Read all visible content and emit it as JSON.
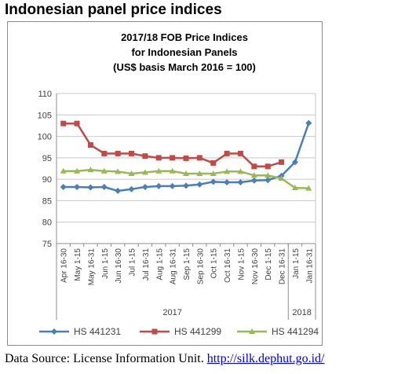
{
  "heading": "Indonesian panel price indices",
  "source": {
    "prefix": "Data Source: License Information Unit.",
    "link": "http://silk.dephut.go.id/"
  },
  "chart_data": {
    "type": "line",
    "title_lines": [
      "2017/18 FOB Price Indices",
      "for Indonesian Panels",
      "(US$ basis March 2016 = 100)"
    ],
    "ylim": [
      75,
      110
    ],
    "yticks": [
      75,
      80,
      85,
      90,
      95,
      100,
      105,
      110
    ],
    "grid": true,
    "legend_position": "bottom",
    "categories": [
      "Apr 16-30",
      "May 1-15",
      "May 16-31",
      "Jun 1-15",
      "Jun 16-30",
      "Jul 1-15",
      "Jul 16-31",
      "Aug 1-15",
      "Aug 16-31",
      "Sep 1-15",
      "Sep 16-30",
      "Oct 1-15",
      "Oct 16-31",
      "Nov 1-15",
      "Nov 16-30",
      "Dec 1-15",
      "Dec 16-31",
      "Jan 1-15",
      "Jan 16-31"
    ],
    "year_groups": [
      {
        "label": "2017",
        "count": 17
      },
      {
        "label": "2018",
        "count": 2
      }
    ],
    "series": [
      {
        "name": "HS 441231",
        "color": "#4a7ebb",
        "marker": "diamond",
        "values": [
          88.2,
          88.2,
          88.1,
          88.2,
          87.3,
          87.7,
          88.2,
          88.4,
          88.4,
          88.5,
          88.8,
          89.4,
          89.3,
          89.3,
          89.7,
          89.8,
          90.8,
          94.0,
          103.1
        ]
      },
      {
        "name": "HS 441299",
        "color": "#be4b48",
        "marker": "square",
        "values": [
          103.0,
          103.0,
          98.0,
          96.0,
          96.0,
          96.0,
          95.4,
          95.0,
          95.0,
          94.9,
          95.0,
          93.8,
          96.0,
          96.0,
          93.0,
          93.0,
          94.0,
          null,
          null
        ]
      },
      {
        "name": "HS 441294",
        "color": "#98b954",
        "marker": "triangle",
        "values": [
          91.9,
          91.9,
          92.2,
          91.9,
          91.8,
          91.3,
          91.6,
          91.9,
          91.9,
          91.3,
          91.3,
          91.3,
          91.8,
          91.8,
          90.9,
          90.9,
          90.2,
          88.0,
          87.9
        ]
      }
    ]
  }
}
